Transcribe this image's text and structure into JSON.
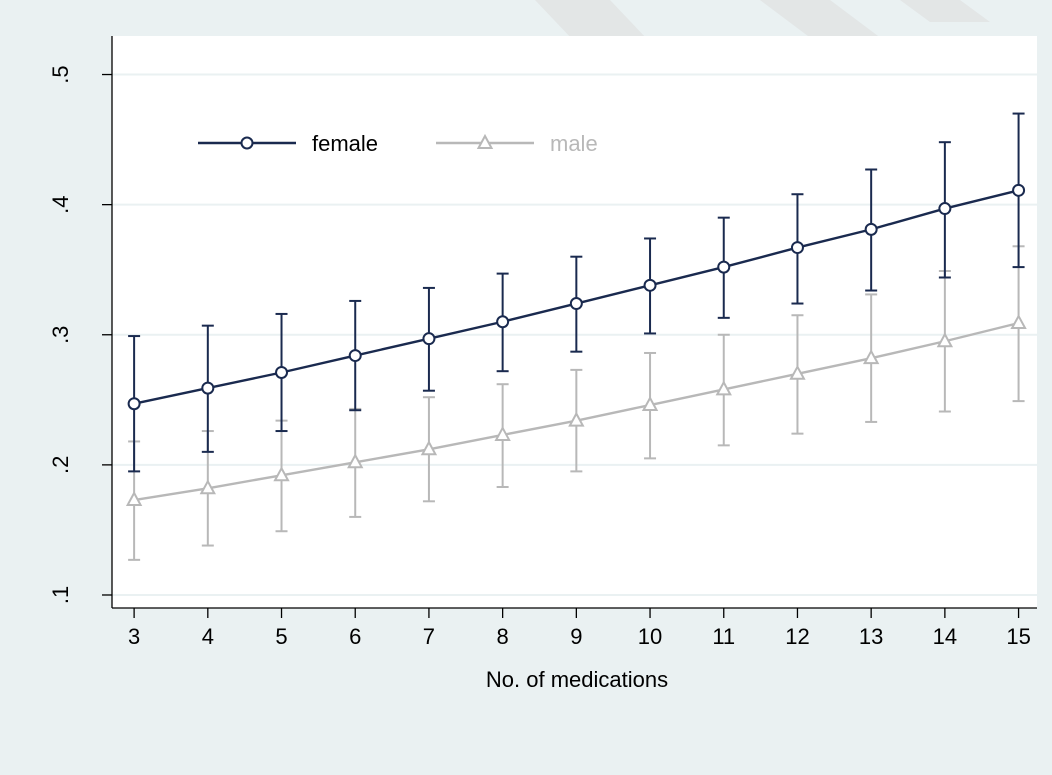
{
  "chart_data": {
    "type": "line",
    "title": "",
    "xlabel": "No. of medications",
    "ylabel": "",
    "x": [
      3,
      4,
      5,
      6,
      7,
      8,
      9,
      10,
      11,
      12,
      13,
      14,
      15
    ],
    "xlim": [
      2.7,
      15.25
    ],
    "ylim": [
      0.09,
      0.525
    ],
    "y_ticks": [
      0.1,
      0.2,
      0.3,
      0.4,
      0.5
    ],
    "y_tick_labels": [
      ".1",
      ".2",
      ".3",
      ".4",
      ".5"
    ],
    "grid": true,
    "legend_position": "top-left",
    "series": [
      {
        "name": "female",
        "color": "#1a2a4f",
        "marker": "circle",
        "values": [
          0.247,
          0.259,
          0.271,
          0.284,
          0.297,
          0.31,
          0.324,
          0.338,
          0.352,
          0.367,
          0.381,
          0.397,
          0.411
        ],
        "ci_low": [
          0.195,
          0.21,
          0.226,
          0.242,
          0.257,
          0.272,
          0.287,
          0.301,
          0.313,
          0.324,
          0.334,
          0.344,
          0.352
        ],
        "ci_high": [
          0.299,
          0.307,
          0.316,
          0.326,
          0.336,
          0.347,
          0.36,
          0.374,
          0.39,
          0.408,
          0.427,
          0.448,
          0.47
        ]
      },
      {
        "name": "male",
        "color": "#b8b8b8",
        "marker": "triangle",
        "values": [
          0.173,
          0.182,
          0.192,
          0.202,
          0.212,
          0.223,
          0.234,
          0.246,
          0.258,
          0.27,
          0.282,
          0.295,
          0.309
        ],
        "ci_low": [
          0.127,
          0.138,
          0.149,
          0.16,
          0.172,
          0.183,
          0.195,
          0.205,
          0.215,
          0.224,
          0.233,
          0.241,
          0.249
        ],
        "ci_high": [
          0.218,
          0.226,
          0.234,
          0.243,
          0.252,
          0.262,
          0.273,
          0.286,
          0.3,
          0.315,
          0.331,
          0.349,
          0.368
        ]
      }
    ]
  },
  "style": {
    "outer_background": "#eaf1f2",
    "plot_background": "#ffffff",
    "grid_color": "#eaf1f2",
    "axis_color": "#000000",
    "watermark_color": "#dcdcdc"
  }
}
